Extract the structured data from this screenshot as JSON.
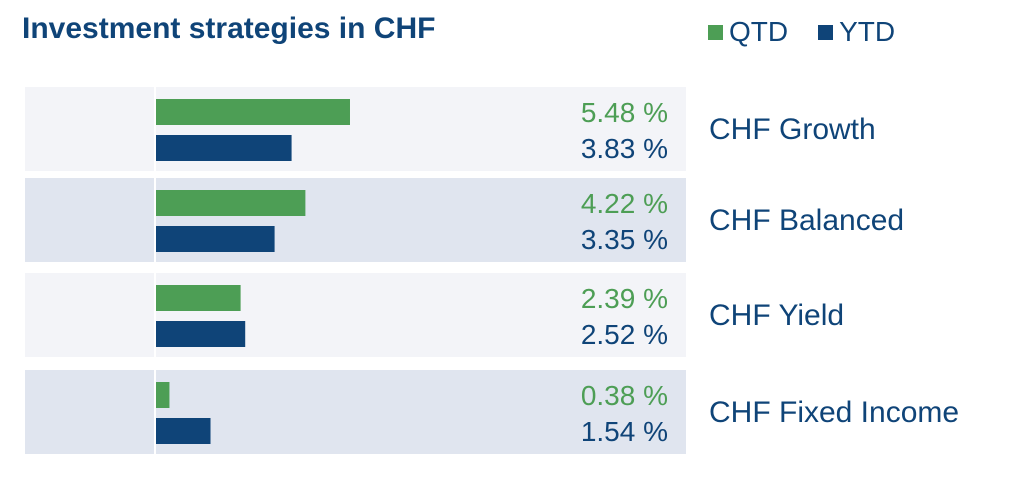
{
  "chart_data": {
    "type": "bar",
    "orientation": "horizontal",
    "title": "Investment strategies in CHF",
    "categories": [
      "CHF Growth",
      "CHF Balanced",
      "CHF Yield",
      "CHF Fixed Income"
    ],
    "series": [
      {
        "name": "QTD",
        "color": "#4d9e55",
        "values": [
          5.48,
          4.22,
          2.39,
          0.38
        ]
      },
      {
        "name": "YTD",
        "color": "#0f4478",
        "values": [
          3.83,
          3.35,
          2.52,
          1.54
        ]
      }
    ],
    "value_labels": {
      "QTD": [
        "5.48 %",
        "4.22 %",
        "2.39 %",
        "0.38 %"
      ],
      "YTD": [
        "3.83 %",
        "3.35 %",
        "2.52 %",
        "1.54 %"
      ]
    },
    "xlim": [
      0,
      10
    ],
    "legend_position": "top-right",
    "grid": false,
    "row_colors": [
      "#f3f4f8",
      "#e0e5ef"
    ]
  }
}
